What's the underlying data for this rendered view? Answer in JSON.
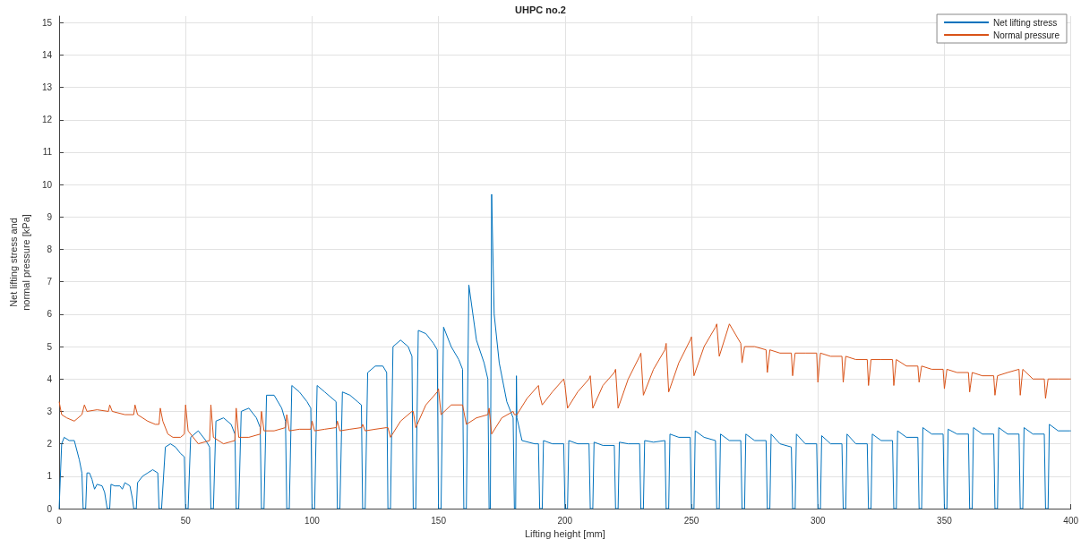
{
  "chart_data": {
    "type": "line",
    "title": "UHPC no.2",
    "xlabel": "Lifting height [mm]",
    "ylabel": "Net lifting stress and\nnormal pressure [kPa]",
    "xlim": [
      0,
      400
    ],
    "xticks": [
      0,
      50,
      100,
      150,
      200,
      250,
      300,
      350,
      400
    ],
    "ylim": [
      0,
      15.2
    ],
    "yticks": [
      0,
      1,
      2,
      3,
      4,
      5,
      6,
      7,
      8,
      9,
      10,
      11,
      12,
      13,
      14,
      15
    ],
    "grid": true,
    "legend": "top right",
    "marker": "none",
    "line_style": "solid",
    "series": [
      {
        "name": "Net lifting stress",
        "color": "#0072bd",
        "x": [
          0,
          1,
          2,
          4,
          6,
          8,
          9,
          9.5,
          10.5,
          11,
          12,
          13,
          14,
          15,
          17,
          18,
          19,
          20,
          20.5,
          22,
          24,
          25,
          26,
          28,
          29,
          29.5,
          30.5,
          31,
          33,
          35,
          37,
          39,
          39.5,
          40.5,
          42,
          44,
          46,
          48,
          49.5,
          50,
          51,
          52,
          55,
          58,
          59.5,
          60,
          61,
          62,
          65,
          68,
          69.5,
          70,
          71,
          72,
          75,
          78,
          79.5,
          80,
          81,
          82,
          85,
          88,
          89.5,
          90,
          91,
          92,
          95,
          98,
          99.5,
          100,
          101,
          102,
          105,
          108,
          109.5,
          110,
          111,
          112,
          115,
          118,
          119.5,
          120,
          121,
          122,
          125,
          128,
          129.5,
          130,
          131,
          132,
          135,
          138,
          139.5,
          140,
          141,
          142,
          145,
          148,
          149.5,
          150,
          151,
          152,
          155,
          158,
          159.5,
          160,
          161,
          162,
          165,
          168,
          169.5,
          170,
          170.5,
          171,
          172,
          174,
          177,
          179.5,
          180,
          180.5,
          180.8,
          181,
          183,
          188,
          189.5,
          190,
          191,
          191.5,
          195,
          199.5,
          200,
          201,
          201.5,
          205,
          209.5,
          210,
          211,
          211.5,
          215,
          219.5,
          220,
          221,
          221.5,
          225,
          229.5,
          230,
          231,
          231.5,
          235,
          239.5,
          240,
          241,
          241.5,
          245,
          249.5,
          250,
          251,
          251.5,
          255,
          259.5,
          260,
          261,
          261.5,
          265,
          269.5,
          270,
          271,
          271.5,
          275,
          279.5,
          280,
          281,
          281.5,
          285,
          289.5,
          290,
          291,
          291.5,
          295,
          299.5,
          300,
          301,
          301.5,
          305,
          309.5,
          310,
          311,
          311.5,
          315,
          319.5,
          320,
          321,
          321.5,
          325,
          329.5,
          330,
          331,
          331.5,
          335,
          339.5,
          340,
          341,
          341.5,
          345,
          349.5,
          350,
          351,
          351.5,
          355,
          359.5,
          360,
          361,
          361.5,
          365,
          369.5,
          370,
          371,
          371.5,
          375,
          379.5,
          380,
          381,
          381.5,
          385,
          389.5,
          390,
          391,
          391.5,
          395,
          399.5,
          400
        ],
        "values": [
          0,
          2,
          2.2,
          2.1,
          2.1,
          1.5,
          1.1,
          0,
          0,
          1.1,
          1.1,
          0.9,
          0.6,
          0.75,
          0.7,
          0.5,
          0,
          0,
          0.75,
          0.7,
          0.7,
          0.6,
          0.8,
          0.7,
          0.3,
          0,
          0,
          0.8,
          1,
          1.1,
          1.2,
          1.1,
          0,
          0,
          1.9,
          2,
          1.9,
          1.7,
          1.6,
          0,
          0,
          2.2,
          2.4,
          2.1,
          1.9,
          0,
          0,
          2.7,
          2.8,
          2.6,
          2.3,
          0,
          0,
          3,
          3.1,
          2.8,
          2.5,
          0,
          0,
          3.5,
          3.5,
          3.1,
          2.7,
          0,
          0,
          3.8,
          3.6,
          3.3,
          3.1,
          0,
          0,
          3.8,
          3.6,
          3.4,
          3.3,
          0,
          0,
          3.6,
          3.5,
          3.3,
          3.2,
          0,
          0,
          4.2,
          4.4,
          4.4,
          4.2,
          0,
          0,
          5,
          5.2,
          5,
          4.7,
          0,
          0,
          5.5,
          5.4,
          5.1,
          4.9,
          0,
          0,
          5.6,
          5,
          4.6,
          4.3,
          0,
          0,
          6.9,
          5.2,
          4.5,
          4,
          0,
          0,
          9.7,
          6,
          4.5,
          3.3,
          2.8,
          0,
          0,
          4.1,
          2.8,
          2.1,
          2,
          2,
          0,
          0,
          2.1,
          2,
          2,
          0,
          0,
          2.1,
          2,
          2,
          0,
          0,
          2.05,
          1.95,
          1.95,
          0,
          0,
          2.05,
          2,
          2,
          0,
          0,
          2.1,
          2.05,
          2.1,
          0,
          0,
          2.3,
          2.2,
          2.2,
          0,
          0,
          2.4,
          2.2,
          2.1,
          0,
          0,
          2.3,
          2.1,
          2.1,
          0,
          0,
          2.3,
          2.1,
          2.1,
          0,
          0,
          2.3,
          2.0,
          1.9,
          0,
          0,
          2.3,
          2.0,
          2.0,
          0,
          0,
          2.25,
          2.0,
          2.0,
          0,
          0,
          2.3,
          2.0,
          2.0,
          0,
          0,
          2.3,
          2.1,
          2.1,
          0,
          0,
          2.4,
          2.2,
          2.2,
          0,
          0,
          2.5,
          2.3,
          2.3,
          0,
          0,
          2.45,
          2.3,
          2.3,
          0,
          0,
          2.5,
          2.3,
          2.3,
          0,
          0,
          2.5,
          2.3,
          2.3,
          0,
          0,
          2.5,
          2.3,
          2.3,
          0,
          0,
          2.6,
          2.4,
          2.4,
          2.4
        ]
      },
      {
        "name": "Normal pressure",
        "color": "#d95319",
        "x": [
          0,
          1,
          3,
          6,
          9,
          10,
          11,
          15,
          19.5,
          20,
          21,
          26,
          29.5,
          30,
          31,
          35,
          38,
          39.5,
          40,
          41,
          43,
          45,
          48,
          49.5,
          50,
          51,
          55,
          59.5,
          60,
          61,
          65,
          69.5,
          70,
          71,
          75,
          79.5,
          80,
          81,
          85,
          89.5,
          90,
          91,
          95,
          99.5,
          100,
          101,
          105,
          109.5,
          110,
          111,
          115,
          119.5,
          120,
          121,
          125,
          129.5,
          130,
          131,
          135,
          139.5,
          140,
          141,
          145,
          149.5,
          150,
          151,
          155,
          159.5,
          160,
          161,
          165,
          169.5,
          170,
          171,
          175,
          179.5,
          180,
          181,
          185,
          189.5,
          190,
          191,
          195,
          199.5,
          200,
          201,
          205,
          209.5,
          210,
          211,
          215,
          219.5,
          220,
          221,
          225,
          229.5,
          230,
          231,
          235,
          239.5,
          240,
          241,
          245,
          249.5,
          250,
          251,
          255,
          259.5,
          260,
          261,
          265,
          269.5,
          270,
          271,
          275,
          279.5,
          280,
          281,
          285,
          289.5,
          290,
          291,
          295,
          299.5,
          300,
          301,
          305,
          309.5,
          310,
          311,
          315,
          319.5,
          320,
          321,
          325,
          329.5,
          330,
          331,
          335,
          339.5,
          340,
          341,
          345,
          349.5,
          350,
          351,
          355,
          359.5,
          360,
          361,
          365,
          369.5,
          370,
          371,
          375,
          379.5,
          380,
          381,
          385,
          389.5,
          390,
          391,
          395,
          399.5,
          400
        ],
        "values": [
          3.3,
          2.9,
          2.8,
          2.7,
          2.9,
          3.2,
          3.0,
          3.05,
          3.0,
          3.2,
          3.0,
          2.9,
          2.9,
          3.2,
          2.9,
          2.7,
          2.6,
          2.6,
          3.1,
          2.7,
          2.3,
          2.2,
          2.2,
          2.3,
          3.2,
          2.4,
          2.0,
          2.1,
          3.2,
          2.2,
          2.0,
          2.1,
          3.1,
          2.2,
          2.2,
          2.3,
          3.0,
          2.4,
          2.4,
          2.5,
          2.9,
          2.4,
          2.45,
          2.45,
          2.7,
          2.4,
          2.45,
          2.5,
          2.7,
          2.4,
          2.45,
          2.5,
          2.6,
          2.4,
          2.45,
          2.5,
          2.5,
          2.2,
          2.7,
          3.0,
          3.0,
          2.5,
          3.2,
          3.6,
          3.7,
          2.9,
          3.2,
          3.2,
          3.0,
          2.6,
          2.8,
          2.9,
          3.1,
          2.3,
          2.8,
          3.0,
          2.9,
          2.9,
          3.4,
          3.8,
          3.5,
          3.2,
          3.6,
          4.0,
          3.8,
          3.1,
          3.6,
          4.0,
          4.1,
          3.1,
          3.8,
          4.2,
          4.3,
          3.1,
          4.0,
          4.7,
          4.8,
          3.5,
          4.3,
          4.9,
          5.1,
          3.6,
          4.5,
          5.2,
          5.3,
          4.1,
          5.0,
          5.6,
          5.7,
          4.7,
          5.7,
          5.1,
          4.5,
          5.0,
          5.0,
          4.9,
          4.2,
          4.9,
          4.8,
          4.8,
          4.1,
          4.8,
          4.8,
          4.8,
          3.9,
          4.8,
          4.7,
          4.7,
          3.9,
          4.7,
          4.6,
          4.6,
          3.8,
          4.6,
          4.6,
          4.6,
          3.8,
          4.6,
          4.4,
          4.4,
          3.9,
          4.4,
          4.3,
          4.3,
          3.7,
          4.3,
          4.2,
          4.2,
          3.6,
          4.2,
          4.1,
          4.1,
          3.5,
          4.1,
          4.2,
          4.3,
          3.5,
          4.3,
          4.0,
          4.0,
          3.4,
          4.0,
          4.0,
          4.0,
          4.0
        ]
      }
    ]
  }
}
